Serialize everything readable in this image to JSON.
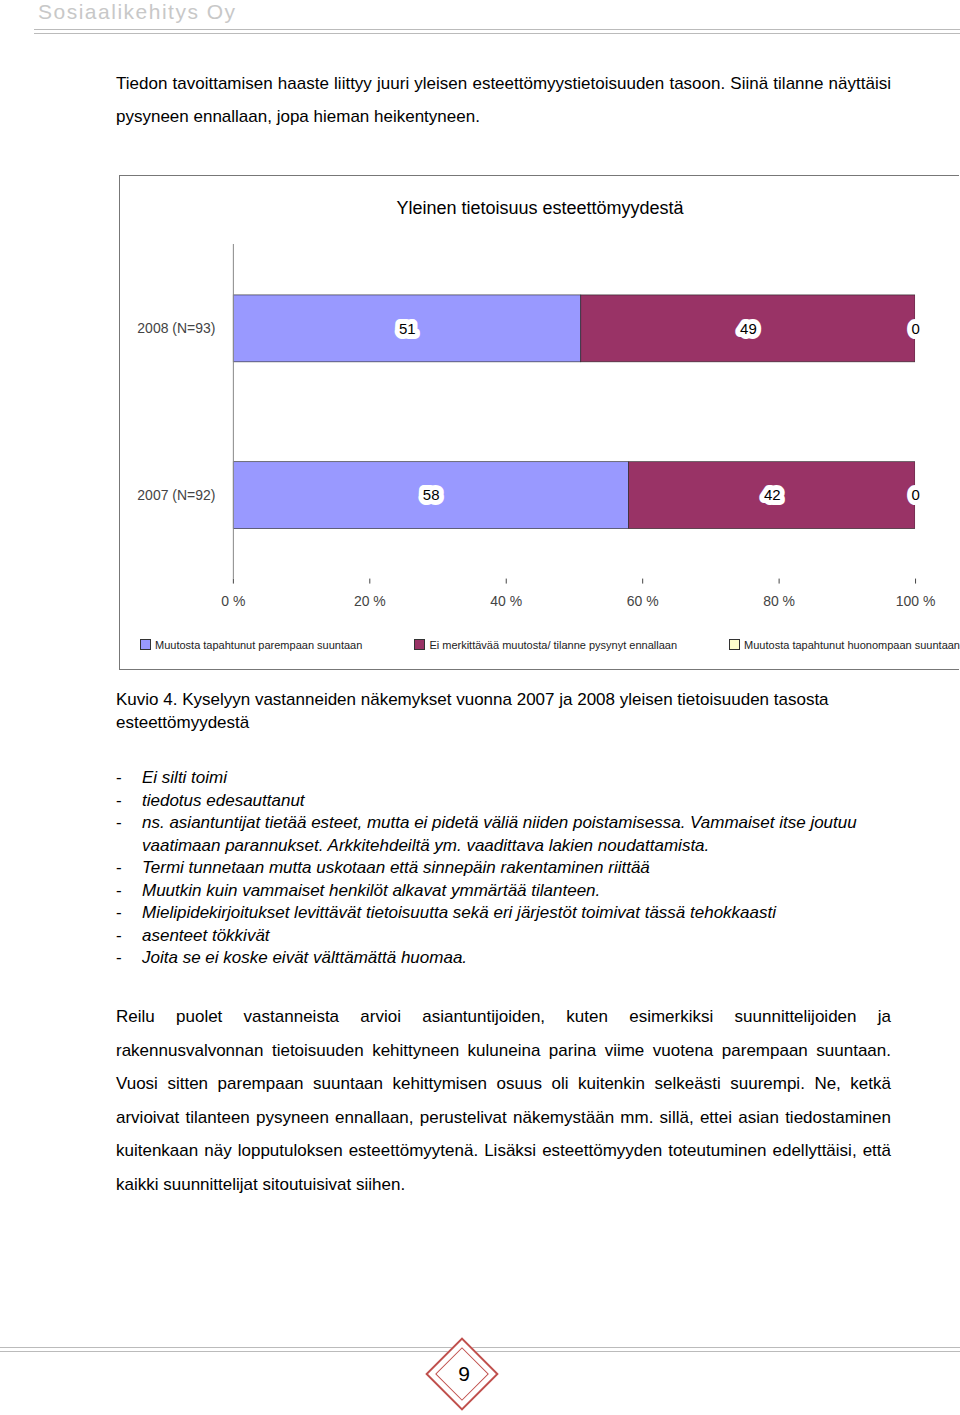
{
  "header": {
    "title": "Sosiaalikehitys Oy"
  },
  "intro": "Tiedon tavoittamisen haaste liittyy juuri yleisen esteettömyystietoisuuden tasoon. Siinä tilanne näyttäisi pysyneen ennallaan, jopa hieman heikentyneen.",
  "chart_data": {
    "type": "bar",
    "title": "Yleinen tietoisuus esteettömyydestä",
    "orientation": "horizontal",
    "stacked": true,
    "data_labels": true,
    "legend": "bottom",
    "categories": [
      "2008 (N=93)",
      "2007 (N=92)"
    ],
    "series": [
      {
        "name": "Muutosta tapahtunut parempaan suuntaan",
        "color": "#9999ff",
        "values": [
          51,
          58
        ]
      },
      {
        "name": "Ei merkittävää muutosta/ tilanne pysynyt ennallaan",
        "color": "#993366",
        "values": [
          49,
          42
        ]
      },
      {
        "name": "Muutosta tapahtunut huonompaan suuntaan",
        "color": "#ffffcc",
        "values": [
          0,
          0
        ]
      }
    ],
    "xlim": [
      0,
      100
    ],
    "xticks": [
      {
        "value": 0,
        "label": "0 %"
      },
      {
        "value": 20,
        "label": "20 %"
      },
      {
        "value": 40,
        "label": "40 %"
      },
      {
        "value": 60,
        "label": "60 %"
      },
      {
        "value": 80,
        "label": "80 %"
      },
      {
        "value": 100,
        "label": "100 %"
      }
    ]
  },
  "caption": "Kuvio 4. Kyselyyn vastanneiden näkemykset vuonna 2007 ja 2008 yleisen tietoisuuden tasosta esteettömyydestä",
  "bullets": [
    "Ei silti toimi",
    "tiedotus edesauttanut",
    "ns. asiantuntijat tietää esteet, mutta ei pidetä väliä niiden poistamisessa. Vammaiset itse joutuu vaatimaan parannukset. Arkkitehdeiltä ym. vaadittava lakien noudattamista.",
    "Termi tunnetaan mutta uskotaan että sinnepäin rakentaminen riittää",
    "Muutkin kuin vammaiset henkilöt alkavat ymmärtää tilanteen.",
    "Mielipidekirjoitukset levittävät tietoisuutta sekä eri järjestöt toimivat tässä tehokkaasti",
    "asenteet tökkivät",
    "Joita se ei koske eivät välttämättä huomaa."
  ],
  "paragraph": "Reilu puolet vastanneista arvioi asiantuntijoiden, kuten esimerkiksi suunnittelijoiden ja rakennusvalvonnan tietoisuuden kehittyneen kuluneina parina viime vuotena parempaan suuntaan. Vuosi sitten parempaan suuntaan kehittymisen osuus oli kuitenkin selkeästi suurempi. Ne, ketkä arvioivat tilanteen pysyneen ennallaan, perustelivat näkemystään mm. sillä, ettei asian tiedostaminen kuitenkaan näy lopputuloksen esteettömyytenä. Lisäksi esteettömyyden toteutuminen edellyttäisi, että kaikki suunnittelijat sitoutuisivat siihen.",
  "footer": {
    "page": "9"
  }
}
